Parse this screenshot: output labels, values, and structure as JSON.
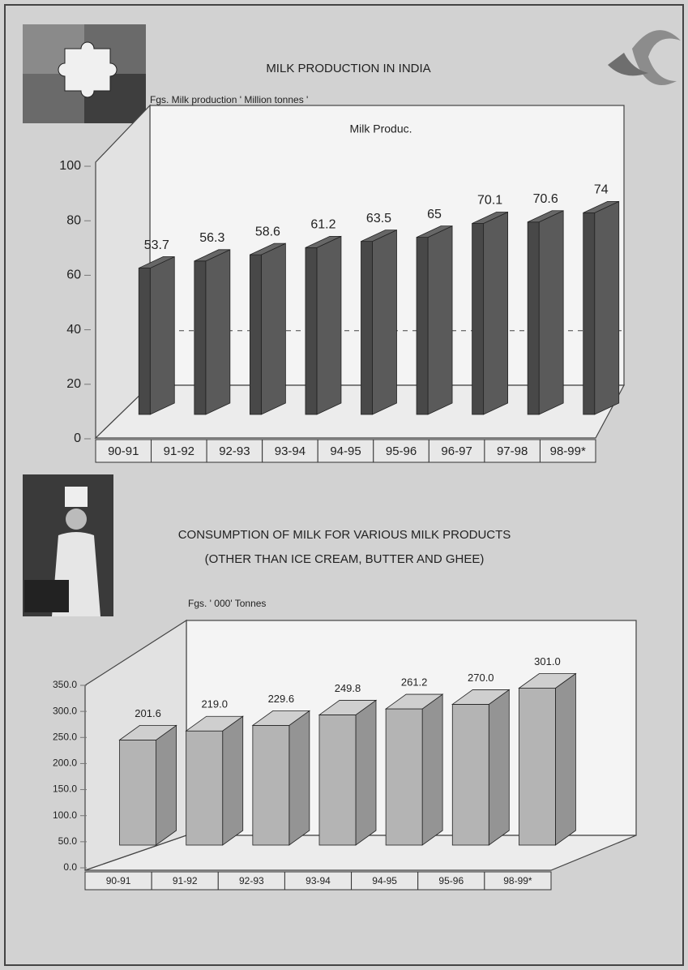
{
  "chart_data": [
    {
      "type": "bar3d",
      "title": "MILK PRODUCTION IN INDIA",
      "y_label": "Fgs. Milk production ' Million tonnes '",
      "legend": "Milk Produc.",
      "categories": [
        "90-91",
        "91-92",
        "92-93",
        "93-94",
        "94-95",
        "95-96",
        "96-97",
        "97-98",
        "98-99*"
      ],
      "values": [
        53.7,
        56.3,
        58.6,
        61.2,
        63.5,
        65,
        70.1,
        70.6,
        74
      ],
      "color": "#5a5a5a",
      "ylim": [
        0,
        100
      ],
      "yticks": [
        0,
        20,
        40,
        60,
        80,
        100
      ]
    },
    {
      "type": "bar3d",
      "title": "CONSUMPTION OF MILK FOR VARIOUS MILK PRODUCTS",
      "subtitle": "(OTHER THAN ICE CREAM, BUTTER AND GHEE)",
      "y_label": "Fgs. ' 000' Tonnes",
      "categories": [
        "90-91",
        "91-92",
        "92-93",
        "93-94",
        "94-95",
        "95-96",
        "98-99*"
      ],
      "values": [
        201.6,
        219,
        229.6,
        249.8,
        261.2,
        270,
        301
      ],
      "value_labels": [
        "201.6",
        "219.0",
        "229.6",
        "249.8",
        "261.2",
        "270.0",
        "301.0"
      ],
      "color": "#b4b4b4",
      "ylim": [
        0,
        350
      ],
      "yticks": [
        {
          "value": 0,
          "label": "0.0"
        },
        {
          "value": 50,
          "label": "50.0"
        },
        {
          "value": 100,
          "label": "100.0"
        },
        {
          "value": 150,
          "label": "150.0"
        },
        {
          "value": 200,
          "label": "200.0"
        },
        {
          "value": 250,
          "label": "250.0"
        },
        {
          "value": 300,
          "label": "300.0"
        },
        {
          "value": 350,
          "label": "350.0"
        }
      ]
    }
  ]
}
